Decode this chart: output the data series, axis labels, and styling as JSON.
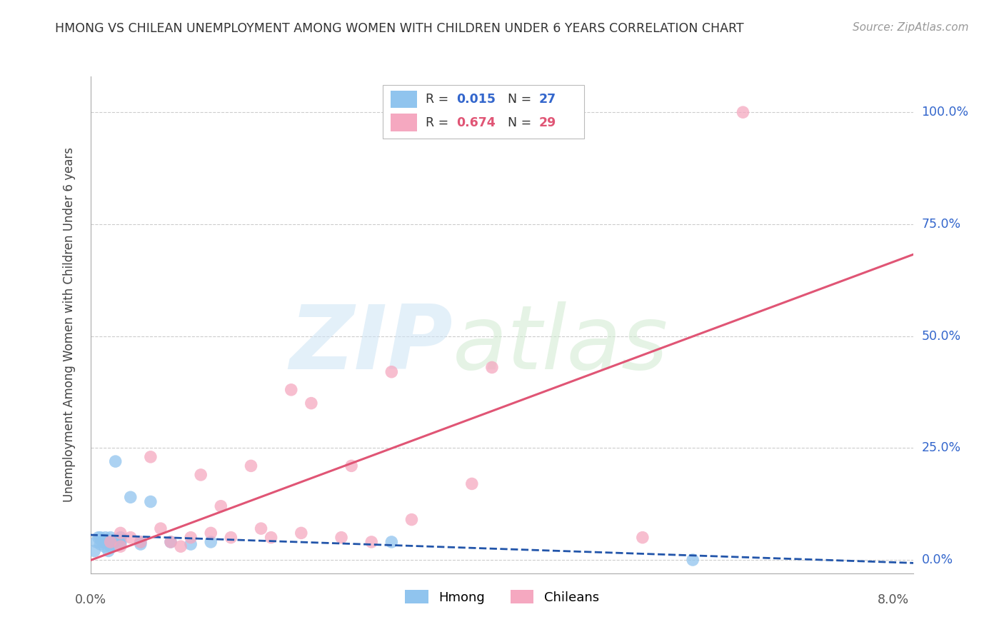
{
  "title": "HMONG VS CHILEAN UNEMPLOYMENT AMONG WOMEN WITH CHILDREN UNDER 6 YEARS CORRELATION CHART",
  "source": "Source: ZipAtlas.com",
  "ylabel": "Unemployment Among Women with Children Under 6 years",
  "ytick_values": [
    0.0,
    0.25,
    0.5,
    0.75,
    1.0
  ],
  "ytick_labels": [
    "0.0%",
    "25.0%",
    "50.0%",
    "75.0%",
    "100.0%"
  ],
  "xlim": [
    0.0,
    0.082
  ],
  "ylim": [
    -0.03,
    1.08
  ],
  "background_color": "#ffffff",
  "grid_color": "#cccccc",
  "hmong_color": "#90c4ee",
  "chilean_color": "#f5a8c0",
  "hmong_line_color": "#2255aa",
  "chilean_line_color": "#e05575",
  "hmong_x": [
    0.0004,
    0.0006,
    0.0008,
    0.001,
    0.001,
    0.0012,
    0.0014,
    0.0015,
    0.0016,
    0.0018,
    0.002,
    0.002,
    0.002,
    0.0022,
    0.0025,
    0.003,
    0.003,
    0.003,
    0.004,
    0.005,
    0.005,
    0.006,
    0.008,
    0.01,
    0.012,
    0.03,
    0.06
  ],
  "hmong_y": [
    0.02,
    0.04,
    0.05,
    0.035,
    0.05,
    0.04,
    0.03,
    0.05,
    0.04,
    0.02,
    0.03,
    0.04,
    0.05,
    0.035,
    0.22,
    0.035,
    0.04,
    0.05,
    0.14,
    0.035,
    0.04,
    0.13,
    0.04,
    0.035,
    0.04,
    0.04,
    0.0
  ],
  "chilean_x": [
    0.002,
    0.003,
    0.003,
    0.004,
    0.005,
    0.006,
    0.007,
    0.008,
    0.009,
    0.01,
    0.011,
    0.012,
    0.013,
    0.014,
    0.016,
    0.017,
    0.018,
    0.02,
    0.021,
    0.022,
    0.025,
    0.026,
    0.028,
    0.03,
    0.032,
    0.038,
    0.04,
    0.055,
    0.065
  ],
  "chilean_y": [
    0.04,
    0.03,
    0.06,
    0.05,
    0.04,
    0.23,
    0.07,
    0.04,
    0.03,
    0.05,
    0.19,
    0.06,
    0.12,
    0.05,
    0.21,
    0.07,
    0.05,
    0.38,
    0.06,
    0.35,
    0.05,
    0.21,
    0.04,
    0.42,
    0.09,
    0.17,
    0.43,
    0.05,
    1.0
  ],
  "r_hmong": "0.015",
  "n_hmong": "27",
  "r_chilean": "0.674",
  "n_chilean": "29",
  "hmong_label_color": "#3366cc",
  "chilean_label_color": "#e05575"
}
